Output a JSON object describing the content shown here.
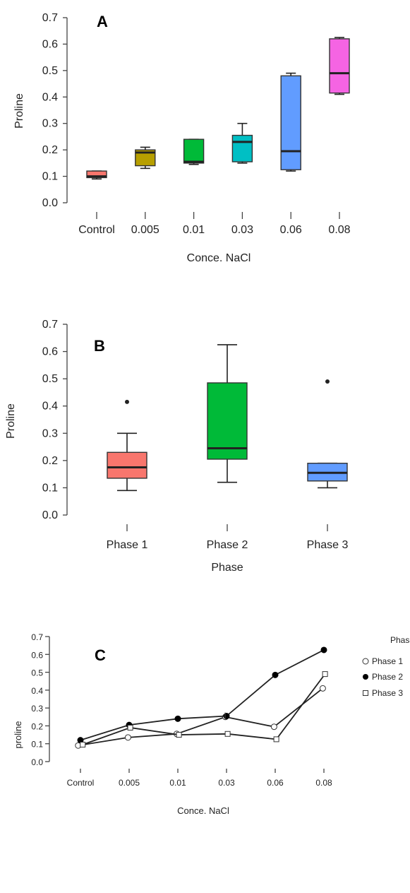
{
  "chart_data": [
    {
      "panel_label": "A",
      "type": "box",
      "xlabel": "Conce. NaCl",
      "ylabel": "Proline",
      "ylim": [
        0,
        0.7
      ],
      "yticks": [
        "0.0",
        "0.1",
        "0.2",
        "0.3",
        "0.4",
        "0.5",
        "0.6",
        "0.7"
      ],
      "categories": [
        "Control",
        "0.005",
        "0.01",
        "0.03",
        "0.06",
        "0.08"
      ],
      "boxes": [
        {
          "min": 0.09,
          "q1": 0.095,
          "median": 0.1,
          "q3": 0.12,
          "max": 0.12,
          "color": "#f8766d"
        },
        {
          "min": 0.13,
          "q1": 0.14,
          "median": 0.19,
          "q3": 0.2,
          "max": 0.21,
          "color": "#b79f00"
        },
        {
          "min": 0.145,
          "q1": 0.15,
          "median": 0.155,
          "q3": 0.24,
          "max": 0.24,
          "color": "#00ba38"
        },
        {
          "min": 0.15,
          "q1": 0.155,
          "median": 0.23,
          "q3": 0.255,
          "max": 0.3,
          "color": "#00bfc4"
        },
        {
          "min": 0.12,
          "q1": 0.125,
          "median": 0.195,
          "q3": 0.48,
          "max": 0.49,
          "color": "#619cff"
        },
        {
          "min": 0.41,
          "q1": 0.415,
          "median": 0.49,
          "q3": 0.62,
          "max": 0.625,
          "color": "#f564e3"
        }
      ]
    },
    {
      "panel_label": "B",
      "type": "box",
      "xlabel": "Phase",
      "ylabel": "Proline",
      "ylim": [
        0,
        0.7
      ],
      "yticks": [
        "0.0",
        "0.1",
        "0.2",
        "0.3",
        "0.4",
        "0.5",
        "0.6",
        "0.7"
      ],
      "categories": [
        "Phase 1",
        "Phase 2",
        "Phase 3"
      ],
      "boxes": [
        {
          "min": 0.09,
          "q1": 0.135,
          "median": 0.175,
          "q3": 0.23,
          "max": 0.3,
          "outliers": [
            0.415
          ],
          "color": "#f8766d"
        },
        {
          "min": 0.12,
          "q1": 0.205,
          "median": 0.245,
          "q3": 0.485,
          "max": 0.625,
          "outliers": [],
          "color": "#00ba38"
        },
        {
          "min": 0.1,
          "q1": 0.125,
          "median": 0.155,
          "q3": 0.19,
          "max": 0.19,
          "outliers": [
            0.49
          ],
          "color": "#619cff"
        }
      ]
    },
    {
      "panel_label": "C",
      "type": "line",
      "xlabel": "Conce. NaCl",
      "ylabel": "proline",
      "ylim": [
        0,
        0.7
      ],
      "yticks": [
        "0.0",
        "0.1",
        "0.2",
        "0.3",
        "0.4",
        "0.5",
        "0.6",
        "0.7"
      ],
      "categories": [
        "Control",
        "0.005",
        "0.01",
        "0.03",
        "0.06",
        "0.08"
      ],
      "legend_title": "Phase",
      "series": [
        {
          "name": "Phase 1",
          "marker": "open-circle",
          "values": [
            0.09,
            0.135,
            0.155,
            0.25,
            0.195,
            0.41
          ]
        },
        {
          "name": "Phase 2",
          "marker": "filled-circle",
          "values": [
            0.12,
            0.205,
            0.24,
            0.255,
            0.485,
            0.625
          ]
        },
        {
          "name": "Phase 3",
          "marker": "open-square",
          "values": [
            0.095,
            0.19,
            0.15,
            0.155,
            0.125,
            0.49
          ]
        }
      ]
    }
  ]
}
